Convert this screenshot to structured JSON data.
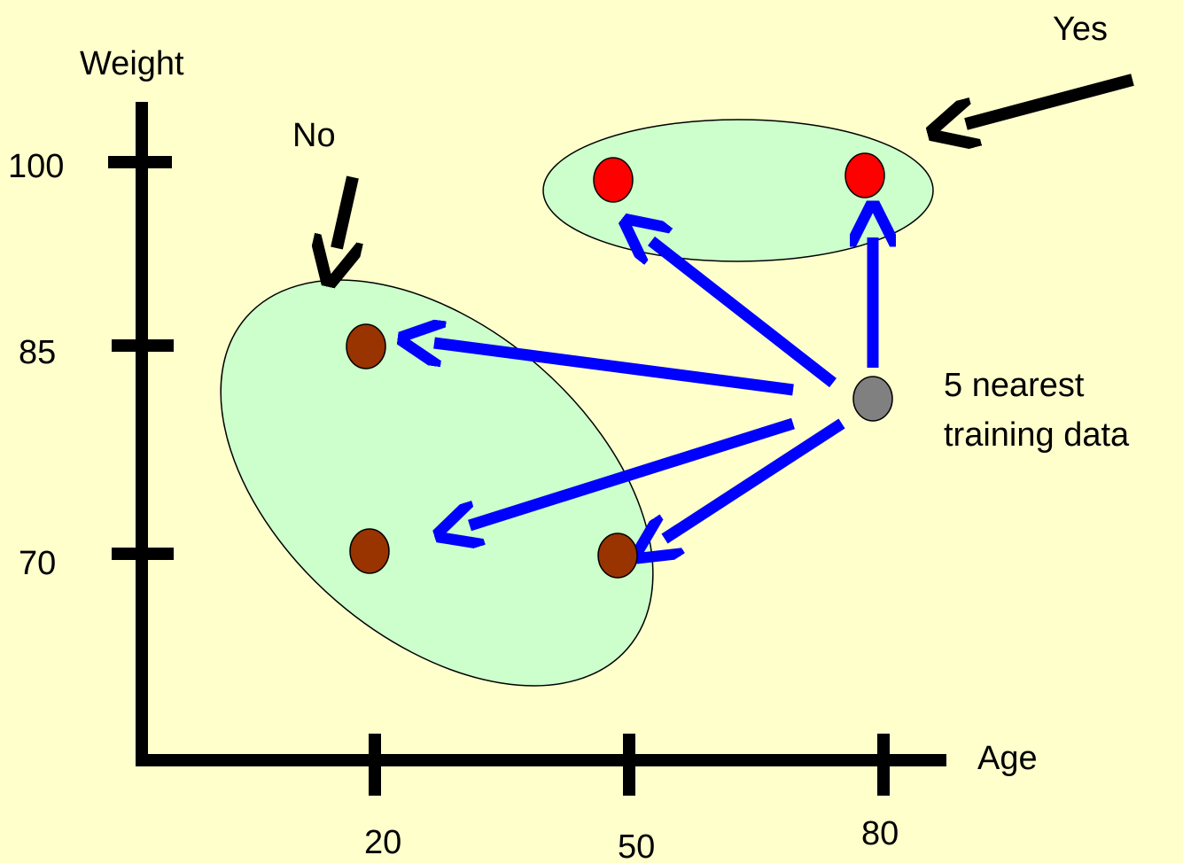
{
  "background_color": "#ffffcc",
  "axes": {
    "x_label": "Age",
    "y_label": "Weight",
    "x_ticks": [
      "20",
      "50",
      "80"
    ],
    "y_ticks": [
      "100",
      "85",
      "70"
    ],
    "axis_color": "#000000"
  },
  "clusters": {
    "no": {
      "label": "No",
      "fill": "#ccffcc",
      "point_color": "#993300"
    },
    "yes": {
      "label": "Yes",
      "fill": "#ccffcc",
      "point_color": "#ff0000"
    }
  },
  "query": {
    "label_line1": "5 nearest",
    "label_line2": "training data",
    "point_color": "#808080",
    "arrow_color": "#0000ff"
  },
  "pointer_arrow_color": "#000000",
  "chart_data": {
    "type": "scatter",
    "xlabel": "Age",
    "ylabel": "Weight",
    "x_ticks": [
      20,
      50,
      80
    ],
    "y_ticks": [
      70,
      85,
      100
    ],
    "series": [
      {
        "name": "No",
        "points": [
          [
            20,
            85
          ],
          [
            20,
            70
          ],
          [
            50,
            70
          ]
        ]
      },
      {
        "name": "Yes",
        "points": [
          [
            50,
            100
          ],
          [
            80,
            100
          ]
        ]
      }
    ],
    "query_point": [
      80,
      82
    ],
    "k": 5,
    "annotations": [
      "No",
      "Yes",
      "5 nearest",
      "training data"
    ]
  }
}
